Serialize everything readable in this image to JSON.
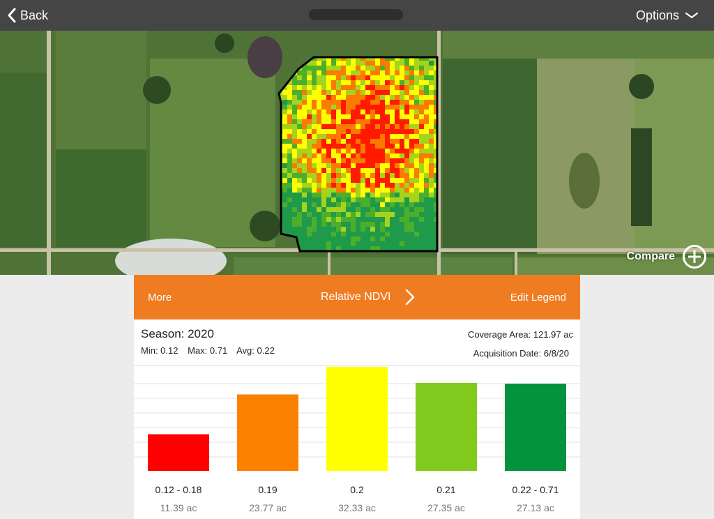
{
  "topbar": {
    "back_label": "Back",
    "options_label": "Options"
  },
  "map": {
    "compare_label": "Compare"
  },
  "panel": {
    "more_label": "More",
    "layer_label": "Relative NDVI",
    "edit_legend_label": "Edit Legend",
    "season": "Season: 2020",
    "min": "Min: 0.12",
    "max": "Max: 0.71",
    "avg": "Avg: 0.22",
    "coverage": "Coverage Area: 121.97 ac",
    "acquisition": "Acquisition Date: 6/8/20"
  },
  "colors": {
    "orange": "#f07c22",
    "red": "#ff0000",
    "dark_orange": "#fb8000",
    "yellow": "#ffff00",
    "light_green": "#82c91e",
    "dark_green": "#05923c"
  },
  "chart_data": {
    "type": "bar",
    "categories": [
      "0.12 - 0.18",
      "0.19",
      "0.2",
      "0.21",
      "0.22 - 0.71"
    ],
    "values": [
      11.39,
      23.77,
      32.33,
      27.35,
      27.13
    ],
    "value_labels": [
      "11.39 ac",
      "23.77 ac",
      "32.33 ac",
      "27.35 ac",
      "27.13 ac"
    ],
    "colors": [
      "#ff0000",
      "#fb8000",
      "#ffff00",
      "#82c91e",
      "#05923c"
    ],
    "unit": "ac",
    "grid": true
  }
}
